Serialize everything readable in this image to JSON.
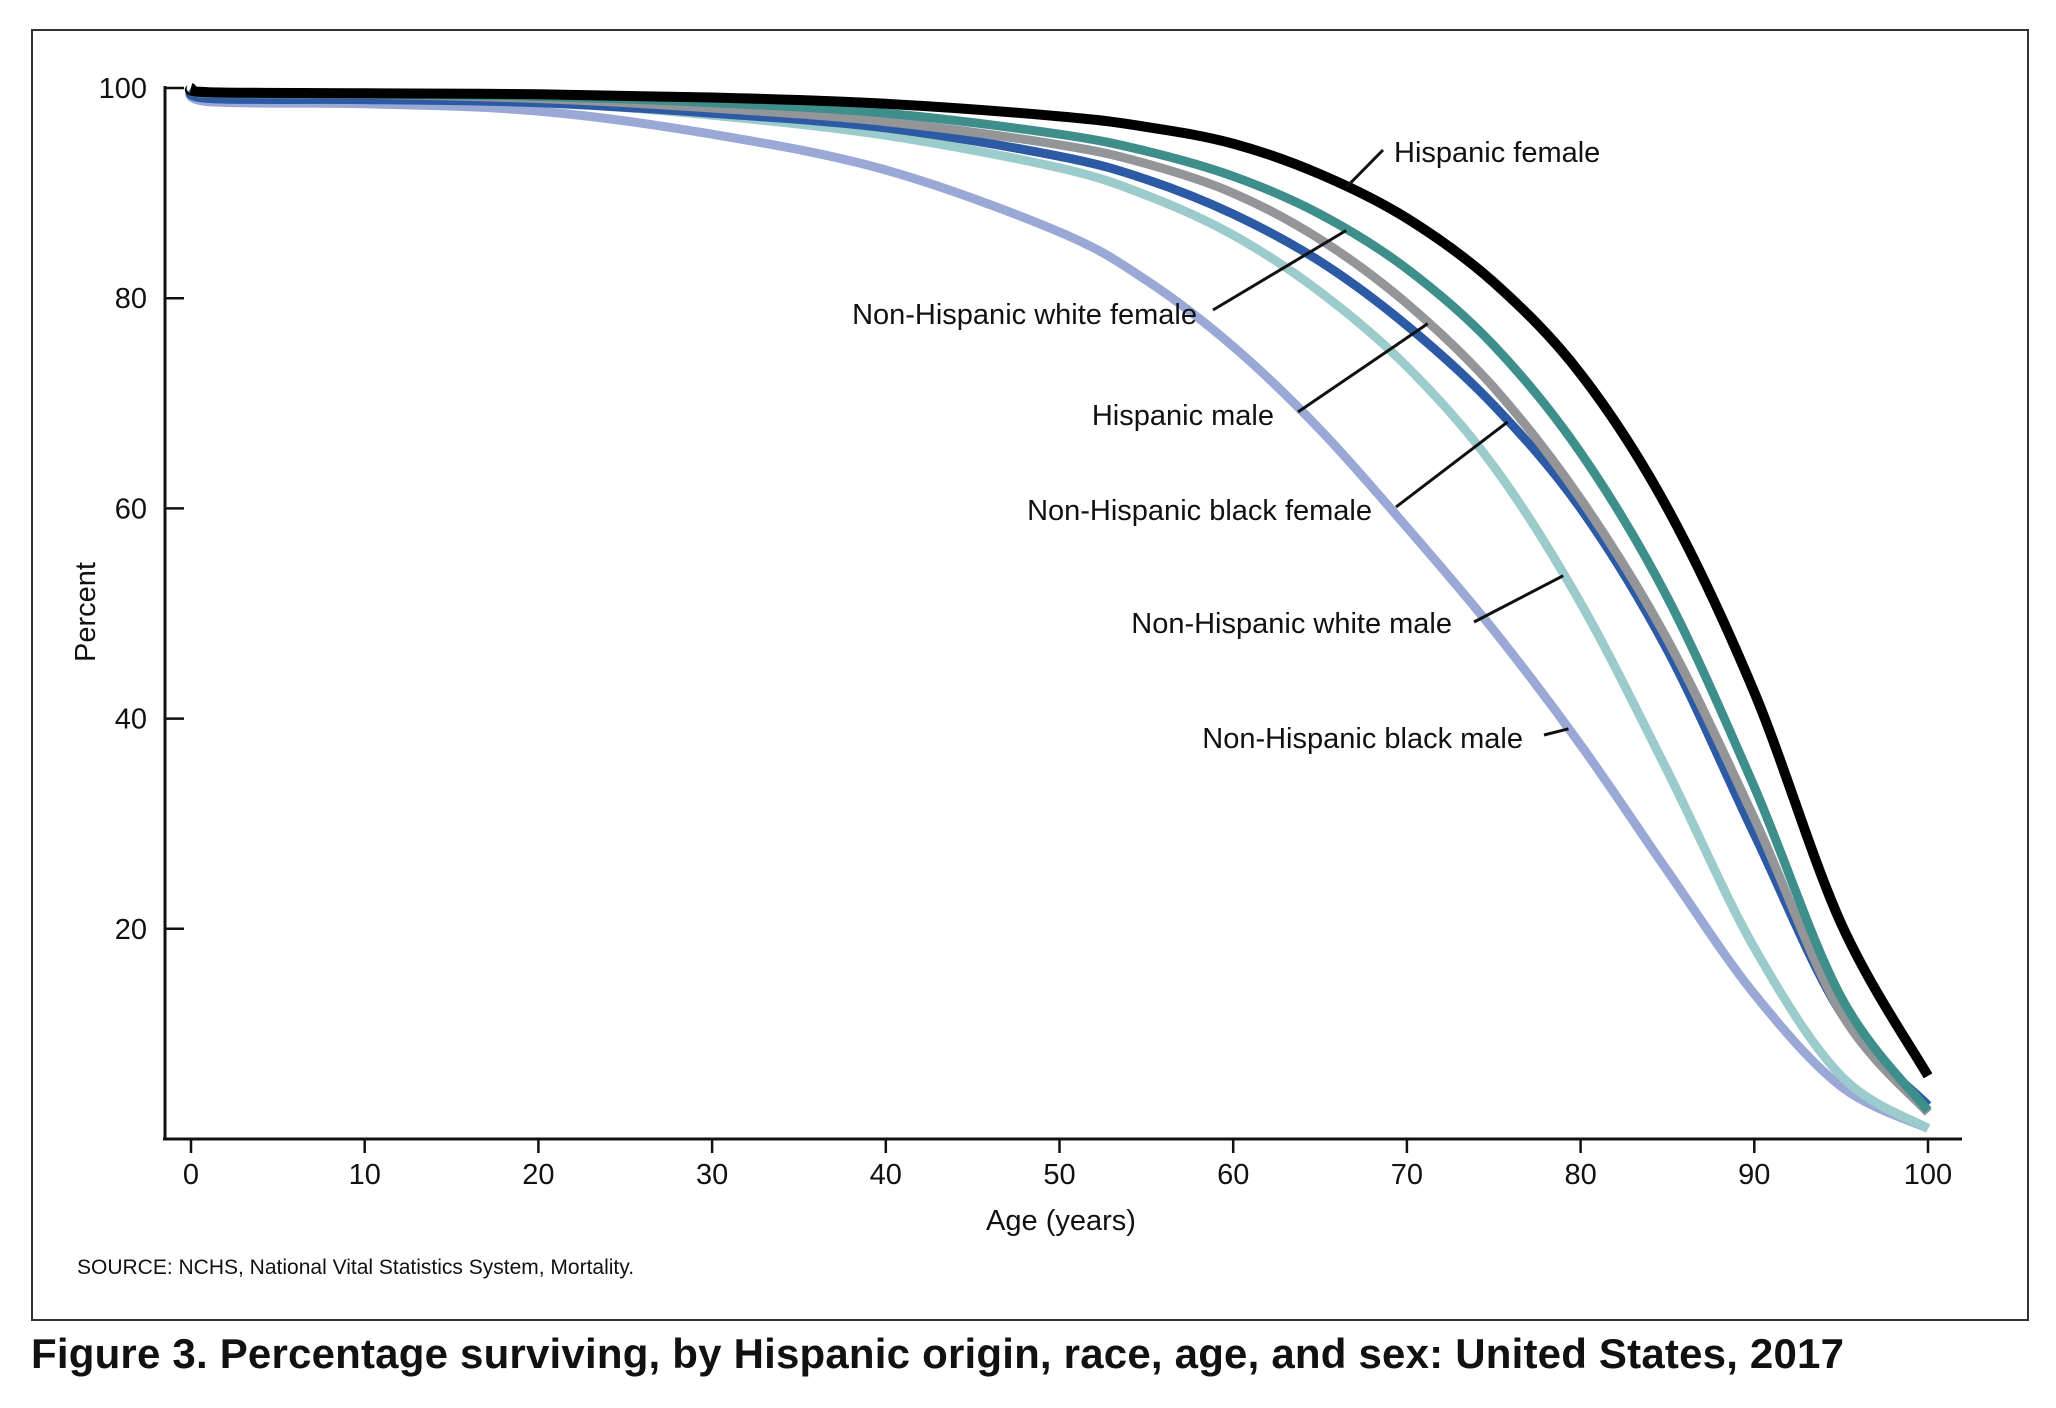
{
  "caption": "Figure 3. Percentage surviving, by Hispanic origin, race, age, and sex: United States, 2017",
  "source": "SOURCE: NCHS, National Vital Statistics System, Mortality.",
  "chart_data": {
    "type": "line",
    "title": "",
    "xlabel": "Age (years)",
    "ylabel": "Percent",
    "xlim": [
      0,
      100
    ],
    "ylim": [
      0,
      100
    ],
    "x_ticks": [
      0,
      10,
      20,
      30,
      40,
      50,
      60,
      70,
      80,
      90,
      100
    ],
    "y_ticks": [
      20,
      40,
      60,
      80,
      100
    ],
    "grid": false,
    "legend": "direct labels with leader lines",
    "x": [
      0,
      1,
      10,
      20,
      30,
      40,
      50,
      55,
      60,
      65,
      70,
      75,
      80,
      85,
      90,
      95,
      100
    ],
    "series": [
      {
        "name": "Non-Hispanic black male",
        "color": "#9aa8d6",
        "values": [
          100,
          98.7,
          98.5,
          97.8,
          95.6,
          92.2,
          86.3,
          81.7,
          75.4,
          67.5,
          58.2,
          48.4,
          37.5,
          25.5,
          13.8,
          5.0,
          1.0
        ]
      },
      {
        "name": "Non-Hispanic white male",
        "color": "#9ccbcb",
        "values": [
          100,
          99.4,
          99.2,
          98.7,
          97.4,
          95.5,
          92.4,
          89.8,
          86.0,
          80.6,
          73.5,
          64.0,
          51.0,
          35.0,
          18.2,
          6.0,
          1.0
        ]
      },
      {
        "name": "Non-Hispanic black female",
        "color": "#2d5aa5",
        "values": [
          100,
          99.0,
          98.9,
          98.6,
          97.6,
          96.2,
          93.5,
          91.3,
          88.0,
          83.5,
          77.4,
          69.8,
          60.0,
          46.5,
          29.0,
          12.0,
          3.2
        ]
      },
      {
        "name": "Hispanic male",
        "color": "#939598",
        "values": [
          100,
          99.5,
          99.4,
          99.0,
          98.1,
          96.8,
          94.6,
          92.8,
          90.0,
          85.6,
          79.5,
          71.5,
          60.9,
          47.5,
          30.5,
          12.0,
          2.5
        ]
      },
      {
        "name": "Non-Hispanic white female",
        "color": "#3e8f8c",
        "values": [
          100,
          99.5,
          99.4,
          99.2,
          98.6,
          97.6,
          95.6,
          94.0,
          91.6,
          88.0,
          82.8,
          75.5,
          65.3,
          51.5,
          33.5,
          13.5,
          2.7
        ]
      },
      {
        "name": "Hispanic female",
        "color": "#000000",
        "values": [
          100,
          99.6,
          99.5,
          99.4,
          99.1,
          98.5,
          97.3,
          96.3,
          94.7,
          91.8,
          87.6,
          81.5,
          72.8,
          60.0,
          42.5,
          20.5,
          6.0
        ]
      }
    ]
  },
  "labels": [
    {
      "series": "Hispanic female",
      "text": "Hispanic female"
    },
    {
      "series": "Non-Hispanic white female",
      "text": "Non-Hispanic white female"
    },
    {
      "series": "Hispanic male",
      "text": "Hispanic male"
    },
    {
      "series": "Non-Hispanic black female",
      "text": "Non-Hispanic black female"
    },
    {
      "series": "Non-Hispanic white male",
      "text": "Non-Hispanic white male"
    },
    {
      "series": "Non-Hispanic black male",
      "text": "Non-Hispanic black male"
    }
  ]
}
